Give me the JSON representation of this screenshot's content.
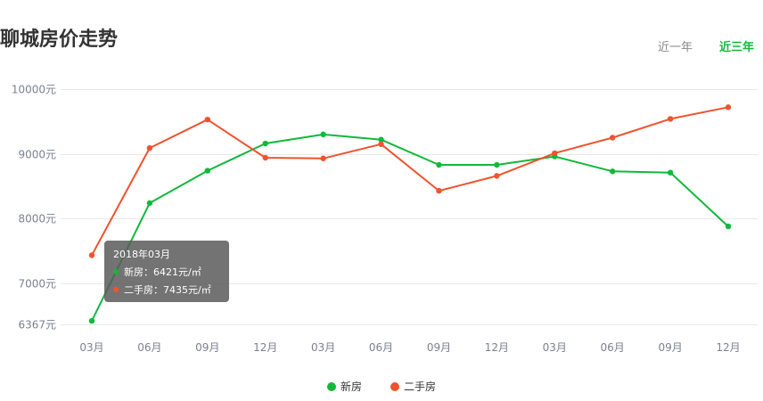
{
  "header": {
    "title": "聊城房价走势"
  },
  "range_tabs": [
    {
      "label": "近一年",
      "active": false
    },
    {
      "label": "近三年",
      "active": true
    }
  ],
  "colors": {
    "new_house": "#11b93b",
    "second_hand": "#f0532d",
    "active_tab": "#11b93b"
  },
  "tooltip": {
    "date": "2018年03月",
    "lines": [
      "新房：6421元/㎡",
      "二手房：7435元/㎡"
    ]
  },
  "legend": [
    {
      "label": "新房",
      "color": "#11b93b"
    },
    {
      "label": "二手房",
      "color": "#f0532d"
    }
  ],
  "chart_data": {
    "type": "line",
    "categories": [
      "03月",
      "06月",
      "09月",
      "12月",
      "03月",
      "06月",
      "09月",
      "12月",
      "03月",
      "06月",
      "09月",
      "12月"
    ],
    "series": [
      {
        "name": "新房",
        "color": "#11b93b",
        "values": [
          6421,
          8240,
          8740,
          9160,
          9300,
          9220,
          8830,
          8830,
          8960,
          8730,
          8710,
          7880
        ]
      },
      {
        "name": "二手房",
        "color": "#f0532d",
        "values": [
          7435,
          9090,
          9530,
          8940,
          8930,
          9150,
          8430,
          8660,
          9010,
          9250,
          9540,
          9720
        ]
      }
    ],
    "yticks": [
      6367,
      7000,
      8000,
      9000,
      10000
    ],
    "ytick_labels": [
      "6367元",
      "7000元",
      "8000元",
      "9000元",
      "10000元"
    ],
    "ylim": [
      6367,
      10000
    ],
    "grid": true,
    "legend_position": "bottom-center",
    "xlabel": "",
    "ylabel": ""
  }
}
